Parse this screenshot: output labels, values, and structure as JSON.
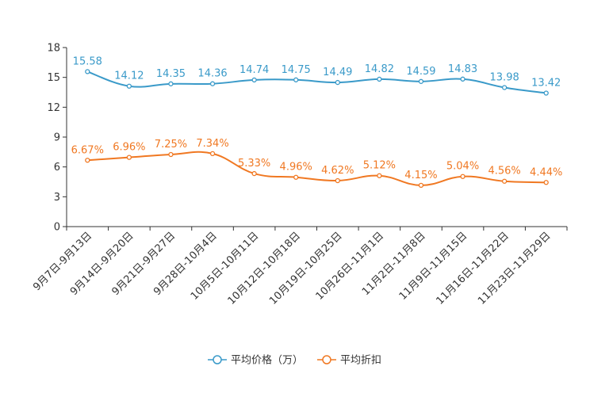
{
  "chart_data": {
    "type": "line",
    "title": "",
    "xlabel": "",
    "ylabel": "",
    "ylim": [
      0,
      18
    ],
    "yticks": [
      0,
      3,
      6,
      9,
      12,
      15,
      18
    ],
    "categories": [
      "9月7日-9月13日",
      "9月14日-9月20日",
      "9月21日-9月27日",
      "9月28日-10月4日",
      "10月5日-10月11日",
      "10月12日-10月18日",
      "10月19日-10月25日",
      "10月26日-11月1日",
      "11月2日-11月8日",
      "11月9日-11月15日",
      "11月16日-11月22日",
      "11月23日-11月29日"
    ],
    "legend_position": "bottom",
    "series": [
      {
        "name": "平均价格（万）",
        "color": "#3a9ac9",
        "values": [
          15.58,
          14.12,
          14.35,
          14.36,
          14.74,
          14.75,
          14.49,
          14.82,
          14.59,
          14.83,
          13.98,
          13.42
        ],
        "labels": [
          "15.58",
          "14.12",
          "14.35",
          "14.36",
          "14.74",
          "14.75",
          "14.49",
          "14.82",
          "14.59",
          "14.83",
          "13.98",
          "13.42"
        ]
      },
      {
        "name": "平均折扣",
        "color": "#f07822",
        "values": [
          6.67,
          6.96,
          7.25,
          7.34,
          5.33,
          4.96,
          4.62,
          5.12,
          4.15,
          5.04,
          4.56,
          4.44
        ],
        "labels": [
          "6.67%",
          "6.96%",
          "7.25%",
          "7.34%",
          "5.33%",
          "4.96%",
          "4.62%",
          "5.12%",
          "4.15%",
          "5.04%",
          "4.56%",
          "4.44%"
        ]
      }
    ]
  }
}
